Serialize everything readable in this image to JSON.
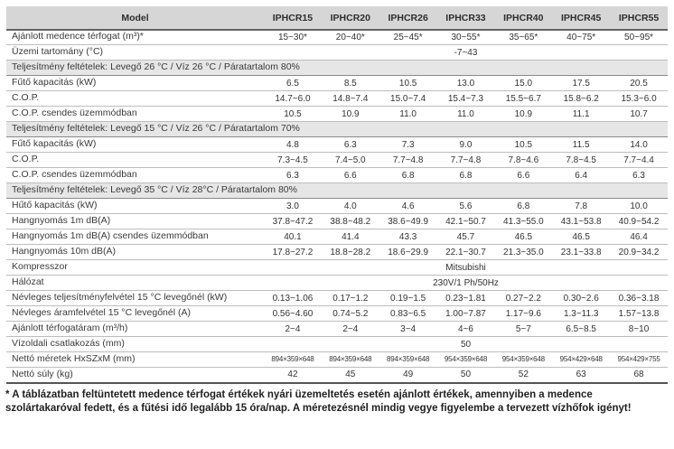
{
  "table": {
    "header": {
      "model_label": "Model",
      "columns": [
        "IPHCR15",
        "IPHCR20",
        "IPHCR26",
        "IPHCR33",
        "IPHCR40",
        "IPHCR45",
        "IPHCR55"
      ]
    },
    "rows": [
      {
        "type": "data",
        "label": "Ajánlott medence térfogat (m³)*",
        "values": [
          "15~30*",
          "20~40*",
          "25~45*",
          "30~55*",
          "35~65*",
          "40~75*",
          "50~95*"
        ]
      },
      {
        "type": "span",
        "label": "Üzemi tartomány (°C)",
        "value": "-7~43"
      },
      {
        "type": "section",
        "label": "Teljesítmény feltételek: Levegő 26 °C / Víz 26 °C / Páratartalom 80%"
      },
      {
        "type": "data",
        "label": "Fűtő kapacitás (kW)",
        "values": [
          "6.5",
          "8.5",
          "10.5",
          "13.0",
          "15.0",
          "17.5",
          "20.5"
        ]
      },
      {
        "type": "data",
        "label": "C.O.P.",
        "values": [
          "14.7~6.0",
          "14.8~7.4",
          "15.0~7.4",
          "15.4~7.3",
          "15.5~6.7",
          "15.8~6.2",
          "15.3~6.0"
        ]
      },
      {
        "type": "data",
        "label": "C.O.P. csendes üzemmódban",
        "values": [
          "10.5",
          "10.9",
          "11.0",
          "11.0",
          "10.9",
          "11.1",
          "10.7"
        ]
      },
      {
        "type": "section",
        "label": "Teljesítmény feltételek: Levegő 15 °C / Víz 26 °C / Páratartalom 70%"
      },
      {
        "type": "data",
        "label": "Fűtő kapacitás (kW)",
        "values": [
          "4.8",
          "6.3",
          "7.3",
          "9.0",
          "10.5",
          "11.5",
          "14.0"
        ]
      },
      {
        "type": "data",
        "label": "C.O.P.",
        "values": [
          "7.3~4.5",
          "7.4~5.0",
          "7.7~4.8",
          "7.7~4.8",
          "7.8~4.6",
          "7.8~4.5",
          "7.7~4.4"
        ]
      },
      {
        "type": "data",
        "label": "C.O.P. csendes üzemmódban",
        "values": [
          "6.3",
          "6.6",
          "6.8",
          "6.8",
          "6.6",
          "6.4",
          "6.3"
        ]
      },
      {
        "type": "section",
        "label": "Teljesítmény feltételek: Levegő 35 °C / Víz 28°C / Páratartalom 80%"
      },
      {
        "type": "data",
        "label": "Hűtő kapacitás (kW)",
        "values": [
          "3.0",
          "4.0",
          "4.6",
          "5.6",
          "6.8",
          "7.8",
          "10.0"
        ]
      },
      {
        "type": "data",
        "label": "Hangnyomás 1m dB(A)",
        "values": [
          "37.8~47.2",
          "38.8~48.2",
          "38.6~49.9",
          "42.1~50.7",
          "41.3~55.0",
          "43.1~53.8",
          "40.9~54.2"
        ]
      },
      {
        "type": "data",
        "label": "Hangnyomás 1m dB(A) csendes üzemmódban",
        "values": [
          "40.1",
          "41.4",
          "43.3",
          "45.7",
          "46.5",
          "46.5",
          "46.4"
        ]
      },
      {
        "type": "data",
        "label": "Hangnyomás 10m dB(A)",
        "values": [
          "17.8~27.2",
          "18.8~28.2",
          "18.6~29.9",
          "22.1~30.7",
          "21.3~35.0",
          "23.1~33.8",
          "20.9~34.2"
        ]
      },
      {
        "type": "span",
        "label": "Kompresszor",
        "value": "Mitsubishi"
      },
      {
        "type": "span",
        "label": "Hálózat",
        "value": "230V/1 Ph/50Hz"
      },
      {
        "type": "data",
        "label": "Névleges teljesítményfelvétel 15 °C levegőnél (kW)",
        "values": [
          "0.13~1.06",
          "0.17~1.2",
          "0.19~1.5",
          "0.23~1.81",
          "0.27~2.2",
          "0.30~2.6",
          "0.36~3.18"
        ]
      },
      {
        "type": "data",
        "label": "Névleges áramfelvétel 15 °C levegőnél (A)",
        "values": [
          "0.56~4.60",
          "0.74~5.2",
          "0.83~6.5",
          "1.00~7.87",
          "1.17~9.6",
          "1.3~11.3",
          "1.57~13.8"
        ]
      },
      {
        "type": "data",
        "label": "Ajánlott térfogatáram (m³/h)",
        "values": [
          "2~4",
          "2~4",
          "3~4",
          "4~6",
          "5~7",
          "6.5~8.5",
          "8~10"
        ]
      },
      {
        "type": "span",
        "label": "Vízoldali csatlakozás (mm)",
        "value": "50"
      },
      {
        "type": "data",
        "label": "Nettó méretek HxSZxM (mm)",
        "values": [
          "894×359×648",
          "894×359×648",
          "894×359×648",
          "954×359×648",
          "954×359×648",
          "954×429×648",
          "954×429×755"
        ]
      },
      {
        "type": "data",
        "label": "Nettó súly (kg)",
        "values": [
          "42",
          "45",
          "49",
          "50",
          "52",
          "63",
          "68"
        ]
      }
    ],
    "colors": {
      "header_bg": "#d6d6d6",
      "row_label_bg": "#e6e6e6",
      "data_bg": "#ffffff",
      "border_dark": "#636363",
      "border_light": "#bdbdbd",
      "text": "#333333"
    }
  },
  "footnote": "* A táblázatban feltüntetett medence térfogat értékek nyári üzemeltetés esetén ajánlott értékek, amennyiben a medence szolártakaróval fedett, és a fűtési idő legalább 15 óra/nap. A méretezésnél mindig vegye figyelembe a tervezett vízhőfok igényt!"
}
